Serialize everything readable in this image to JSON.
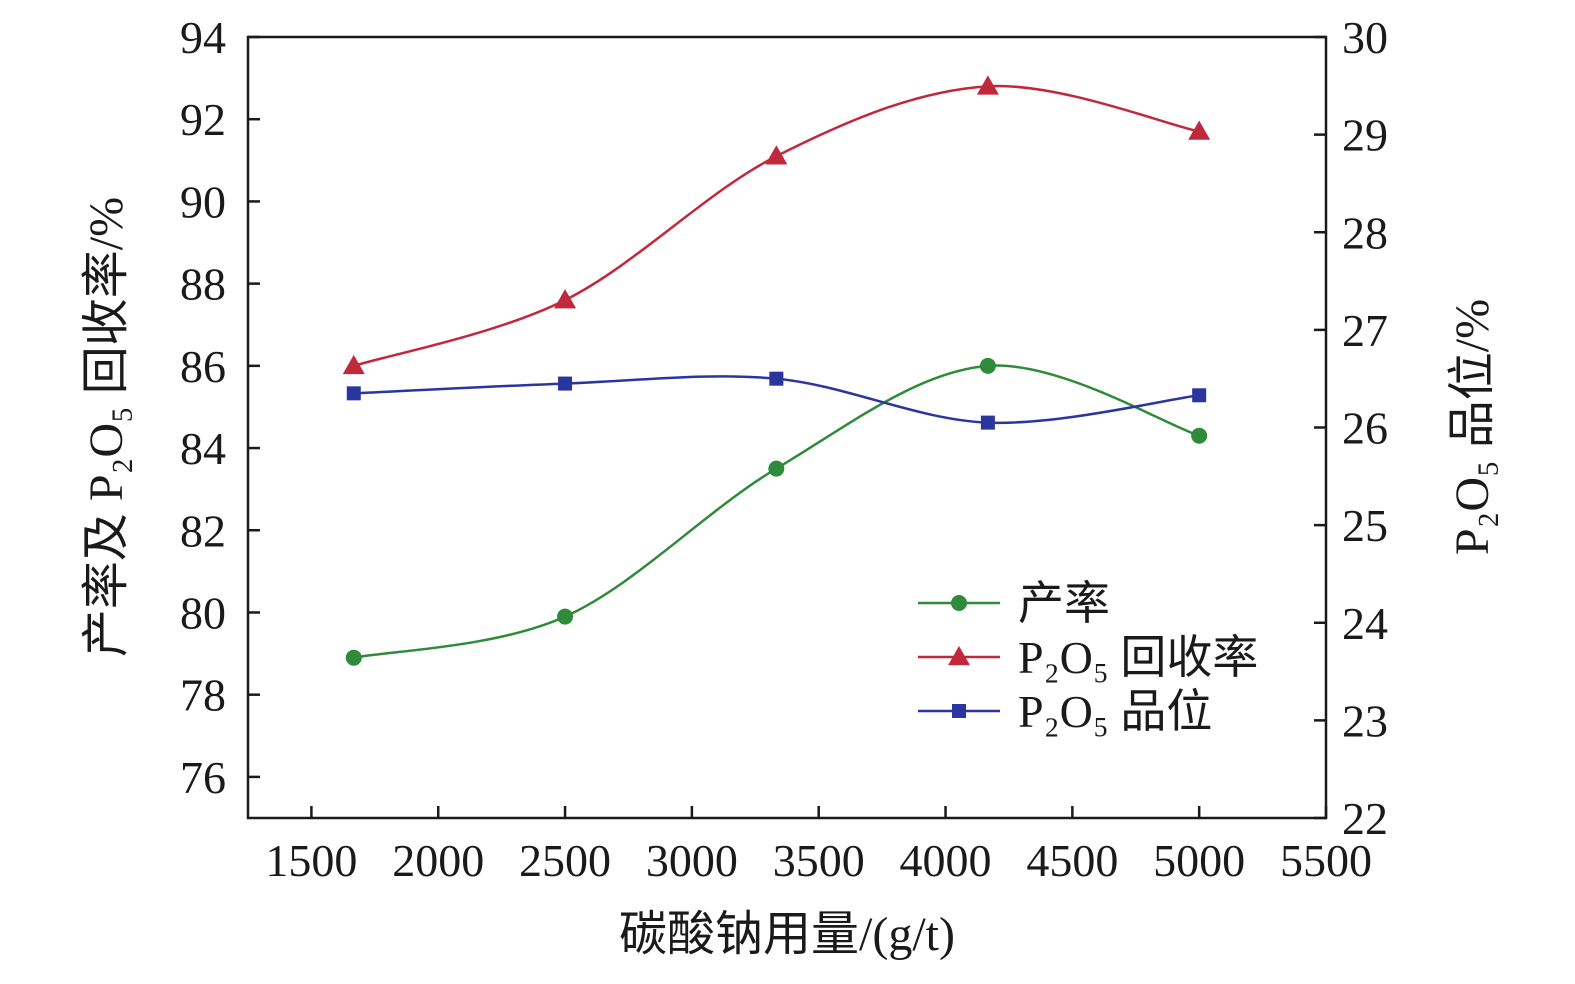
{
  "chart_data": {
    "type": "line",
    "xlabel": "碳酸钠用量/(g/t)",
    "ylabel_left": "产率及 P₂O₅ 回收率/%",
    "ylabel_right": "P₂O₅ 品位/%",
    "x_ticks": [
      1500,
      2000,
      2500,
      3000,
      3500,
      4000,
      4500,
      5000,
      5500
    ],
    "xlim": [
      1250,
      5500
    ],
    "ylim_left": [
      75,
      94
    ],
    "yticks_left": [
      76,
      78,
      80,
      82,
      84,
      86,
      88,
      90,
      92,
      94
    ],
    "ylim_right": [
      22,
      30
    ],
    "yticks_right": [
      22,
      23,
      24,
      25,
      26,
      27,
      28,
      29,
      30
    ],
    "grid": false,
    "legend_position": "bottom-right",
    "series": [
      {
        "name": "产率",
        "axis": "left",
        "color": "#2e8b3a",
        "marker": "circle",
        "x": [
          1667,
          2500,
          3333,
          4167,
          5000
        ],
        "values": [
          78.9,
          79.9,
          83.5,
          86.0,
          84.3
        ]
      },
      {
        "name": "P₂O₅ 回收率",
        "axis": "left",
        "color": "#c0283c",
        "marker": "triangle",
        "x": [
          1667,
          2500,
          3333,
          4167,
          5000
        ],
        "values": [
          86.0,
          87.6,
          91.1,
          92.8,
          91.7
        ]
      },
      {
        "name": "P₂O₅ 品位",
        "axis": "right",
        "color": "#2a35a0",
        "marker": "square",
        "x": [
          1667,
          2500,
          3333,
          4167,
          5000
        ],
        "values": [
          26.35,
          26.45,
          26.5,
          26.05,
          26.33
        ]
      }
    ]
  }
}
